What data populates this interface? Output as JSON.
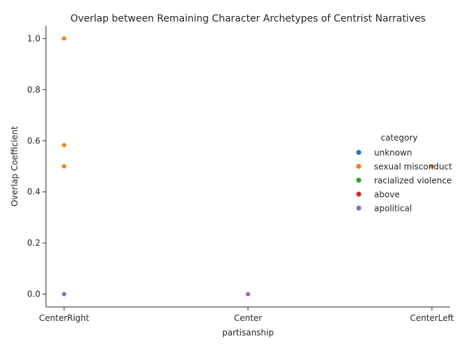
{
  "chart_data": {
    "type": "scatter",
    "title": "Overlap between Remaining Character Archetypes of Centrist Narratives",
    "xlabel": "partisanship",
    "ylabel": "Overlap Coefficient",
    "x_categories": [
      "CenterRight",
      "Center",
      "CenterLeft"
    ],
    "ylim": [
      -0.05,
      1.05
    ],
    "yticks": [
      0.0,
      0.2,
      0.4,
      0.6,
      0.8,
      1.0
    ],
    "ytick_labels": [
      "0.0",
      "0.2",
      "0.4",
      "0.6",
      "0.8",
      "1.0"
    ],
    "grid": false,
    "legend": {
      "title": "category",
      "placement": "right"
    },
    "series": [
      {
        "name": "unknown",
        "color": "#1f77b4",
        "points": []
      },
      {
        "name": "sexual misconduct",
        "color": "#ff7f0e",
        "points": [
          {
            "x": "CenterRight",
            "y": 1.0
          },
          {
            "x": "CenterRight",
            "y": 0.583
          },
          {
            "x": "CenterRight",
            "y": 0.5
          },
          {
            "x": "CenterLeft",
            "y": 0.5
          }
        ]
      },
      {
        "name": "racialized violence",
        "color": "#2ca02c",
        "points": []
      },
      {
        "name": "above",
        "color": "#d62728",
        "points": []
      },
      {
        "name": "apolitical",
        "color": "#9467bd",
        "points": [
          {
            "x": "CenterRight",
            "y": 0.0
          },
          {
            "x": "Center",
            "y": 0.0
          }
        ]
      }
    ]
  }
}
